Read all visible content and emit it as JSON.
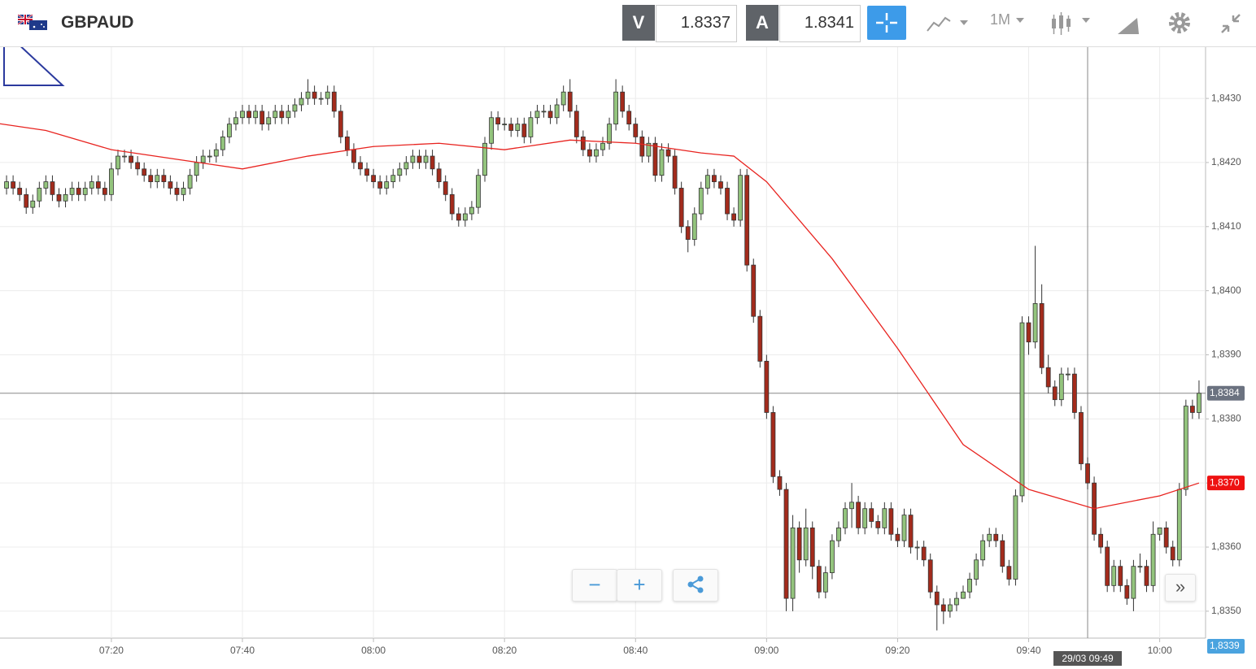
{
  "header": {
    "symbol": "GBPAUD",
    "bid_label": "V",
    "bid": "1.8337",
    "ask_label": "A",
    "ask": "1.8341",
    "timeframe": "1M"
  },
  "chart_data": {
    "type": "candlestick",
    "x": [
      "07:04",
      "07:05",
      "07:06",
      "07:07",
      "07:08",
      "07:09",
      "07:10",
      "07:11",
      "07:12",
      "07:13",
      "07:14",
      "07:15",
      "07:16",
      "07:17",
      "07:18",
      "07:19",
      "07:20",
      "07:21",
      "07:22",
      "07:23",
      "07:24",
      "07:25",
      "07:26",
      "07:27",
      "07:28",
      "07:29",
      "07:30",
      "07:31",
      "07:32",
      "07:33",
      "07:34",
      "07:35",
      "07:36",
      "07:37",
      "07:38",
      "07:39",
      "07:40",
      "07:41",
      "07:42",
      "07:43",
      "07:44",
      "07:45",
      "07:46",
      "07:47",
      "07:48",
      "07:49",
      "07:50",
      "07:51",
      "07:52",
      "07:53",
      "07:54",
      "07:55",
      "07:56",
      "07:57",
      "07:58",
      "07:59",
      "08:00",
      "08:01",
      "08:02",
      "08:03",
      "08:04",
      "08:05",
      "08:06",
      "08:07",
      "08:08",
      "08:09",
      "08:10",
      "08:11",
      "08:12",
      "08:13",
      "08:14",
      "08:15",
      "08:16",
      "08:17",
      "08:18",
      "08:19",
      "08:20",
      "08:21",
      "08:22",
      "08:23",
      "08:24",
      "08:25",
      "08:26",
      "08:27",
      "08:28",
      "08:29",
      "08:30",
      "08:31",
      "08:32",
      "08:33",
      "08:34",
      "08:35",
      "08:36",
      "08:37",
      "08:38",
      "08:39",
      "08:40",
      "08:41",
      "08:42",
      "08:43",
      "08:44",
      "08:45",
      "08:46",
      "08:47",
      "08:48",
      "08:49",
      "08:50",
      "08:51",
      "08:52",
      "08:53",
      "08:54",
      "08:55",
      "08:56",
      "08:57",
      "08:58",
      "08:59",
      "09:00",
      "09:01",
      "09:02",
      "09:03",
      "09:04",
      "09:05",
      "09:06",
      "09:07",
      "09:08",
      "09:09",
      "09:10",
      "09:11",
      "09:12",
      "09:13",
      "09:14",
      "09:15",
      "09:16",
      "09:17",
      "09:18",
      "09:19",
      "09:20",
      "09:21",
      "09:22",
      "09:23",
      "09:24",
      "09:25",
      "09:26",
      "09:27",
      "09:28",
      "09:29",
      "09:30",
      "09:31",
      "09:32",
      "09:33",
      "09:34",
      "09:35",
      "09:36",
      "09:37",
      "09:38",
      "09:39",
      "09:40",
      "09:41",
      "09:42",
      "09:43",
      "09:44",
      "09:45",
      "09:46",
      "09:47",
      "09:48",
      "09:49",
      "09:50",
      "09:51",
      "09:52",
      "09:53",
      "09:54",
      "09:55",
      "09:56",
      "09:57",
      "09:58",
      "09:59",
      "10:00",
      "10:01",
      "10:02",
      "10:03",
      "10:04",
      "10:05",
      "10:06"
    ],
    "open": [
      1.8416,
      1.8417,
      1.8416,
      1.8415,
      1.8413,
      1.8414,
      1.8416,
      1.8417,
      1.8415,
      1.8414,
      1.8415,
      1.8416,
      1.8415,
      1.8416,
      1.8417,
      1.8416,
      1.8415,
      1.8419,
      1.8421,
      1.8421,
      1.842,
      1.8419,
      1.8418,
      1.8417,
      1.8418,
      1.8417,
      1.8416,
      1.8415,
      1.8416,
      1.8418,
      1.842,
      1.8421,
      1.8421,
      1.8422,
      1.8424,
      1.8426,
      1.8427,
      1.8428,
      1.8427,
      1.8428,
      1.8426,
      1.8427,
      1.8428,
      1.8427,
      1.8428,
      1.8429,
      1.843,
      1.8431,
      1.843,
      1.843,
      1.8431,
      1.8428,
      1.8424,
      1.8422,
      1.842,
      1.8419,
      1.8418,
      1.8417,
      1.8416,
      1.8417,
      1.8418,
      1.8419,
      1.842,
      1.8421,
      1.842,
      1.8421,
      1.8419,
      1.8417,
      1.8415,
      1.8412,
      1.8411,
      1.8412,
      1.8413,
      1.8418,
      1.8423,
      1.8427,
      1.8426,
      1.8426,
      1.8425,
      1.8426,
      1.8424,
      1.8427,
      1.8428,
      1.8428,
      1.8427,
      1.8429,
      1.8431,
      1.8428,
      1.8424,
      1.8422,
      1.8421,
      1.8422,
      1.8423,
      1.8426,
      1.8431,
      1.8428,
      1.8426,
      1.8424,
      1.8421,
      1.8423,
      1.8418,
      1.8422,
      1.8421,
      1.8416,
      1.841,
      1.8408,
      1.8412,
      1.8416,
      1.8418,
      1.8417,
      1.8416,
      1.8412,
      1.8411,
      1.8418,
      1.8404,
      1.8396,
      1.8389,
      1.8381,
      1.8371,
      1.8369,
      1.8352,
      1.8363,
      1.8358,
      1.8363,
      1.8357,
      1.8353,
      1.8356,
      1.8361,
      1.8363,
      1.8366,
      1.8367,
      1.8363,
      1.8366,
      1.8364,
      1.8363,
      1.8366,
      1.8362,
      1.8361,
      1.8365,
      1.836,
      1.836,
      1.8358,
      1.8353,
      1.8351,
      1.835,
      1.8351,
      1.8352,
      1.8353,
      1.8355,
      1.8358,
      1.8361,
      1.8362,
      1.8361,
      1.8357,
      1.8355,
      1.8368,
      1.8395,
      1.8392,
      1.8398,
      1.8388,
      1.8385,
      1.8383,
      1.8387,
      1.8387,
      1.8381,
      1.8373,
      1.837,
      1.8362,
      1.836,
      1.8354,
      1.8357,
      1.8354,
      1.8352,
      1.8357,
      1.8357,
      1.8354,
      1.8362,
      1.8363,
      1.836,
      1.8358,
      1.8369,
      1.8382,
      1.8381
    ],
    "high": [
      1.8418,
      1.8418,
      1.8417,
      1.8416,
      1.8415,
      1.8417,
      1.8418,
      1.8418,
      1.8416,
      1.8416,
      1.8417,
      1.8417,
      1.8417,
      1.8418,
      1.8418,
      1.8417,
      1.842,
      1.8422,
      1.8422,
      1.8422,
      1.8421,
      1.842,
      1.8419,
      1.8419,
      1.8419,
      1.8418,
      1.8417,
      1.8417,
      1.8419,
      1.8421,
      1.8422,
      1.8422,
      1.8423,
      1.8425,
      1.8427,
      1.8428,
      1.8429,
      1.8429,
      1.8429,
      1.8429,
      1.8428,
      1.8429,
      1.8429,
      1.8429,
      1.843,
      1.8431,
      1.8433,
      1.8432,
      1.8431,
      1.8432,
      1.8432,
      1.8429,
      1.8425,
      1.8423,
      1.8421,
      1.842,
      1.8419,
      1.8418,
      1.8418,
      1.8419,
      1.842,
      1.8421,
      1.8422,
      1.8422,
      1.8422,
      1.8422,
      1.842,
      1.8418,
      1.8416,
      1.8413,
      1.8413,
      1.8414,
      1.8419,
      1.8424,
      1.8428,
      1.8428,
      1.8427,
      1.8427,
      1.8427,
      1.8427,
      1.8428,
      1.8429,
      1.8429,
      1.8429,
      1.843,
      1.8432,
      1.8433,
      1.8429,
      1.8425,
      1.8423,
      1.8423,
      1.8424,
      1.8427,
      1.8433,
      1.8432,
      1.8429,
      1.8427,
      1.8425,
      1.8424,
      1.8424,
      1.8423,
      1.8423,
      1.8422,
      1.8417,
      1.8411,
      1.8413,
      1.8417,
      1.8419,
      1.8419,
      1.8418,
      1.8417,
      1.8413,
      1.8419,
      1.8419,
      1.8405,
      1.8397,
      1.839,
      1.8382,
      1.8372,
      1.837,
      1.8365,
      1.8364,
      1.8366,
      1.8364,
      1.8358,
      1.8357,
      1.8362,
      1.8364,
      1.8367,
      1.837,
      1.8368,
      1.8367,
      1.8367,
      1.8365,
      1.8367,
      1.8367,
      1.8363,
      1.8366,
      1.8366,
      1.8361,
      1.8361,
      1.8359,
      1.8354,
      1.8352,
      1.8352,
      1.8353,
      1.8354,
      1.8356,
      1.8359,
      1.8362,
      1.8363,
      1.8363,
      1.8362,
      1.8358,
      1.8369,
      1.8396,
      1.8396,
      1.8407,
      1.8401,
      1.839,
      1.8386,
      1.8388,
      1.8388,
      1.8388,
      1.8382,
      1.8374,
      1.8371,
      1.8363,
      1.8361,
      1.8358,
      1.8358,
      1.8355,
      1.8358,
      1.8359,
      1.8358,
      1.8364,
      1.8363,
      1.8364,
      1.8361,
      1.837,
      1.8383,
      1.8383,
      1.8386
    ],
    "low": [
      1.8415,
      1.8415,
      1.8414,
      1.8412,
      1.8412,
      1.8413,
      1.8415,
      1.8414,
      1.8413,
      1.8413,
      1.8414,
      1.8414,
      1.8414,
      1.8415,
      1.8415,
      1.8414,
      1.8414,
      1.8418,
      1.842,
      1.8419,
      1.8418,
      1.8417,
      1.8416,
      1.8416,
      1.8416,
      1.8415,
      1.8414,
      1.8414,
      1.8415,
      1.8417,
      1.8419,
      1.842,
      1.842,
      1.8421,
      1.8423,
      1.8425,
      1.8426,
      1.8426,
      1.8426,
      1.8425,
      1.8425,
      1.8426,
      1.8426,
      1.8426,
      1.8427,
      1.8428,
      1.8429,
      1.8429,
      1.8429,
      1.8429,
      1.8427,
      1.8423,
      1.8421,
      1.8419,
      1.8418,
      1.8417,
      1.8416,
      1.8415,
      1.8415,
      1.8416,
      1.8417,
      1.8418,
      1.8419,
      1.8419,
      1.8419,
      1.8418,
      1.8416,
      1.8414,
      1.8411,
      1.841,
      1.841,
      1.8411,
      1.8412,
      1.8417,
      1.8422,
      1.8425,
      1.8425,
      1.8424,
      1.8424,
      1.8423,
      1.8423,
      1.8426,
      1.8427,
      1.8426,
      1.8426,
      1.8428,
      1.8427,
      1.8423,
      1.8421,
      1.842,
      1.842,
      1.8421,
      1.8422,
      1.8425,
      1.8427,
      1.8425,
      1.8423,
      1.842,
      1.842,
      1.8417,
      1.8417,
      1.842,
      1.8415,
      1.8409,
      1.8406,
      1.8407,
      1.8411,
      1.8415,
      1.8416,
      1.8415,
      1.8411,
      1.841,
      1.841,
      1.8403,
      1.8395,
      1.8388,
      1.838,
      1.837,
      1.8368,
      1.835,
      1.835,
      1.8356,
      1.8357,
      1.8355,
      1.8352,
      1.8352,
      1.8355,
      1.836,
      1.8362,
      1.8363,
      1.8362,
      1.8362,
      1.8363,
      1.8362,
      1.8362,
      1.8361,
      1.836,
      1.836,
      1.8359,
      1.8358,
      1.8357,
      1.8352,
      1.8347,
      1.8348,
      1.8349,
      1.835,
      1.8352,
      1.8352,
      1.8354,
      1.8357,
      1.836,
      1.836,
      1.8356,
      1.8354,
      1.8354,
      1.8367,
      1.839,
      1.8391,
      1.8387,
      1.8384,
      1.8382,
      1.8382,
      1.8386,
      1.838,
      1.8372,
      1.8369,
      1.8361,
      1.8359,
      1.8353,
      1.8353,
      1.8353,
      1.8351,
      1.835,
      1.8356,
      1.8353,
      1.8353,
      1.8361,
      1.8359,
      1.8357,
      1.8357,
      1.8368,
      1.838,
      1.838
    ],
    "close": [
      1.8417,
      1.8416,
      1.8415,
      1.8413,
      1.8414,
      1.8416,
      1.8417,
      1.8415,
      1.8414,
      1.8415,
      1.8416,
      1.8415,
      1.8416,
      1.8417,
      1.8416,
      1.8415,
      1.8419,
      1.8421,
      1.8421,
      1.842,
      1.8419,
      1.8418,
      1.8417,
      1.8418,
      1.8417,
      1.8416,
      1.8415,
      1.8416,
      1.8418,
      1.842,
      1.8421,
      1.8421,
      1.8422,
      1.8424,
      1.8426,
      1.8427,
      1.8428,
      1.8427,
      1.8428,
      1.8426,
      1.8427,
      1.8428,
      1.8427,
      1.8428,
      1.8429,
      1.843,
      1.8431,
      1.843,
      1.843,
      1.8431,
      1.8428,
      1.8424,
      1.8422,
      1.842,
      1.8419,
      1.8418,
      1.8417,
      1.8416,
      1.8417,
      1.8418,
      1.8419,
      1.842,
      1.8421,
      1.842,
      1.8421,
      1.8419,
      1.8417,
      1.8415,
      1.8412,
      1.8411,
      1.8412,
      1.8413,
      1.8418,
      1.8423,
      1.8427,
      1.8426,
      1.8426,
      1.8425,
      1.8426,
      1.8424,
      1.8427,
      1.8428,
      1.8428,
      1.8427,
      1.8429,
      1.8431,
      1.8428,
      1.8424,
      1.8422,
      1.8421,
      1.8422,
      1.8423,
      1.8426,
      1.8431,
      1.8428,
      1.8426,
      1.8424,
      1.8421,
      1.8423,
      1.8418,
      1.8422,
      1.8421,
      1.8416,
      1.841,
      1.8408,
      1.8412,
      1.8416,
      1.8418,
      1.8417,
      1.8416,
      1.8412,
      1.8411,
      1.8418,
      1.8404,
      1.8396,
      1.8389,
      1.8381,
      1.8371,
      1.8369,
      1.8352,
      1.8363,
      1.8358,
      1.8363,
      1.8357,
      1.8353,
      1.8356,
      1.8361,
      1.8363,
      1.8366,
      1.8367,
      1.8363,
      1.8366,
      1.8364,
      1.8363,
      1.8366,
      1.8362,
      1.8361,
      1.8365,
      1.836,
      1.836,
      1.8358,
      1.8353,
      1.8351,
      1.835,
      1.8351,
      1.8352,
      1.8353,
      1.8355,
      1.8358,
      1.8361,
      1.8362,
      1.8361,
      1.8357,
      1.8355,
      1.8368,
      1.8395,
      1.8392,
      1.8398,
      1.8388,
      1.8385,
      1.8383,
      1.8387,
      1.8387,
      1.8381,
      1.8373,
      1.837,
      1.8362,
      1.836,
      1.8354,
      1.8357,
      1.8354,
      1.8352,
      1.8357,
      1.8357,
      1.8354,
      1.8362,
      1.8363,
      1.836,
      1.8358,
      1.8369,
      1.8382,
      1.8381,
      1.8384
    ],
    "up_color": "#93c47d",
    "down_color": "#a32b1c",
    "wick_color": "#333333",
    "moving_average": {
      "x": [
        "07:00",
        "07:10",
        "07:20",
        "07:30",
        "07:40",
        "07:50",
        "08:00",
        "08:10",
        "08:20",
        "08:30",
        "08:40",
        "08:50",
        "08:55",
        "09:00",
        "09:10",
        "09:20",
        "09:30",
        "09:40",
        "09:50",
        "10:00",
        "10:06"
      ],
      "values": [
        1.84265,
        1.8425,
        1.8422,
        1.84205,
        1.8419,
        1.8421,
        1.84225,
        1.8423,
        1.8422,
        1.84235,
        1.8423,
        1.84215,
        1.8421,
        1.8417,
        1.8405,
        1.8391,
        1.8376,
        1.8369,
        1.8366,
        1.8368,
        1.837
      ],
      "color": "#e8231f"
    },
    "xlim": [
      "07:03",
      "10:07"
    ],
    "xticks": [
      "07:20",
      "07:40",
      "08:00",
      "08:20",
      "08:40",
      "09:00",
      "09:20",
      "09:40",
      "10:00"
    ],
    "ylim": [
      1.83458,
      1.8438
    ],
    "yticks": [
      {
        "value": 1.835,
        "label": "1,8350"
      },
      {
        "value": 1.836,
        "label": "1,8360"
      },
      {
        "value": 1.837,
        "label": "1,8370"
      },
      {
        "value": 1.838,
        "label": "1,8380"
      },
      {
        "value": 1.839,
        "label": "1,8390"
      },
      {
        "value": 1.84,
        "label": "1,8400"
      },
      {
        "value": 1.841,
        "label": "1,8410"
      },
      {
        "value": 1.842,
        "label": "1,8420"
      },
      {
        "value": 1.843,
        "label": "1,8430"
      }
    ],
    "grid": true,
    "price_markers": [
      {
        "value": 1.8384,
        "label": "1,8384",
        "color": "#6b7280"
      },
      {
        "value": 1.837,
        "label": "1,8370",
        "color": "#ee1111"
      },
      {
        "value": 1.8339,
        "label": "1,8339",
        "color": "#4aa3df"
      }
    ],
    "crosshair": {
      "x": "09:49",
      "label": "29/03 09:49"
    }
  }
}
